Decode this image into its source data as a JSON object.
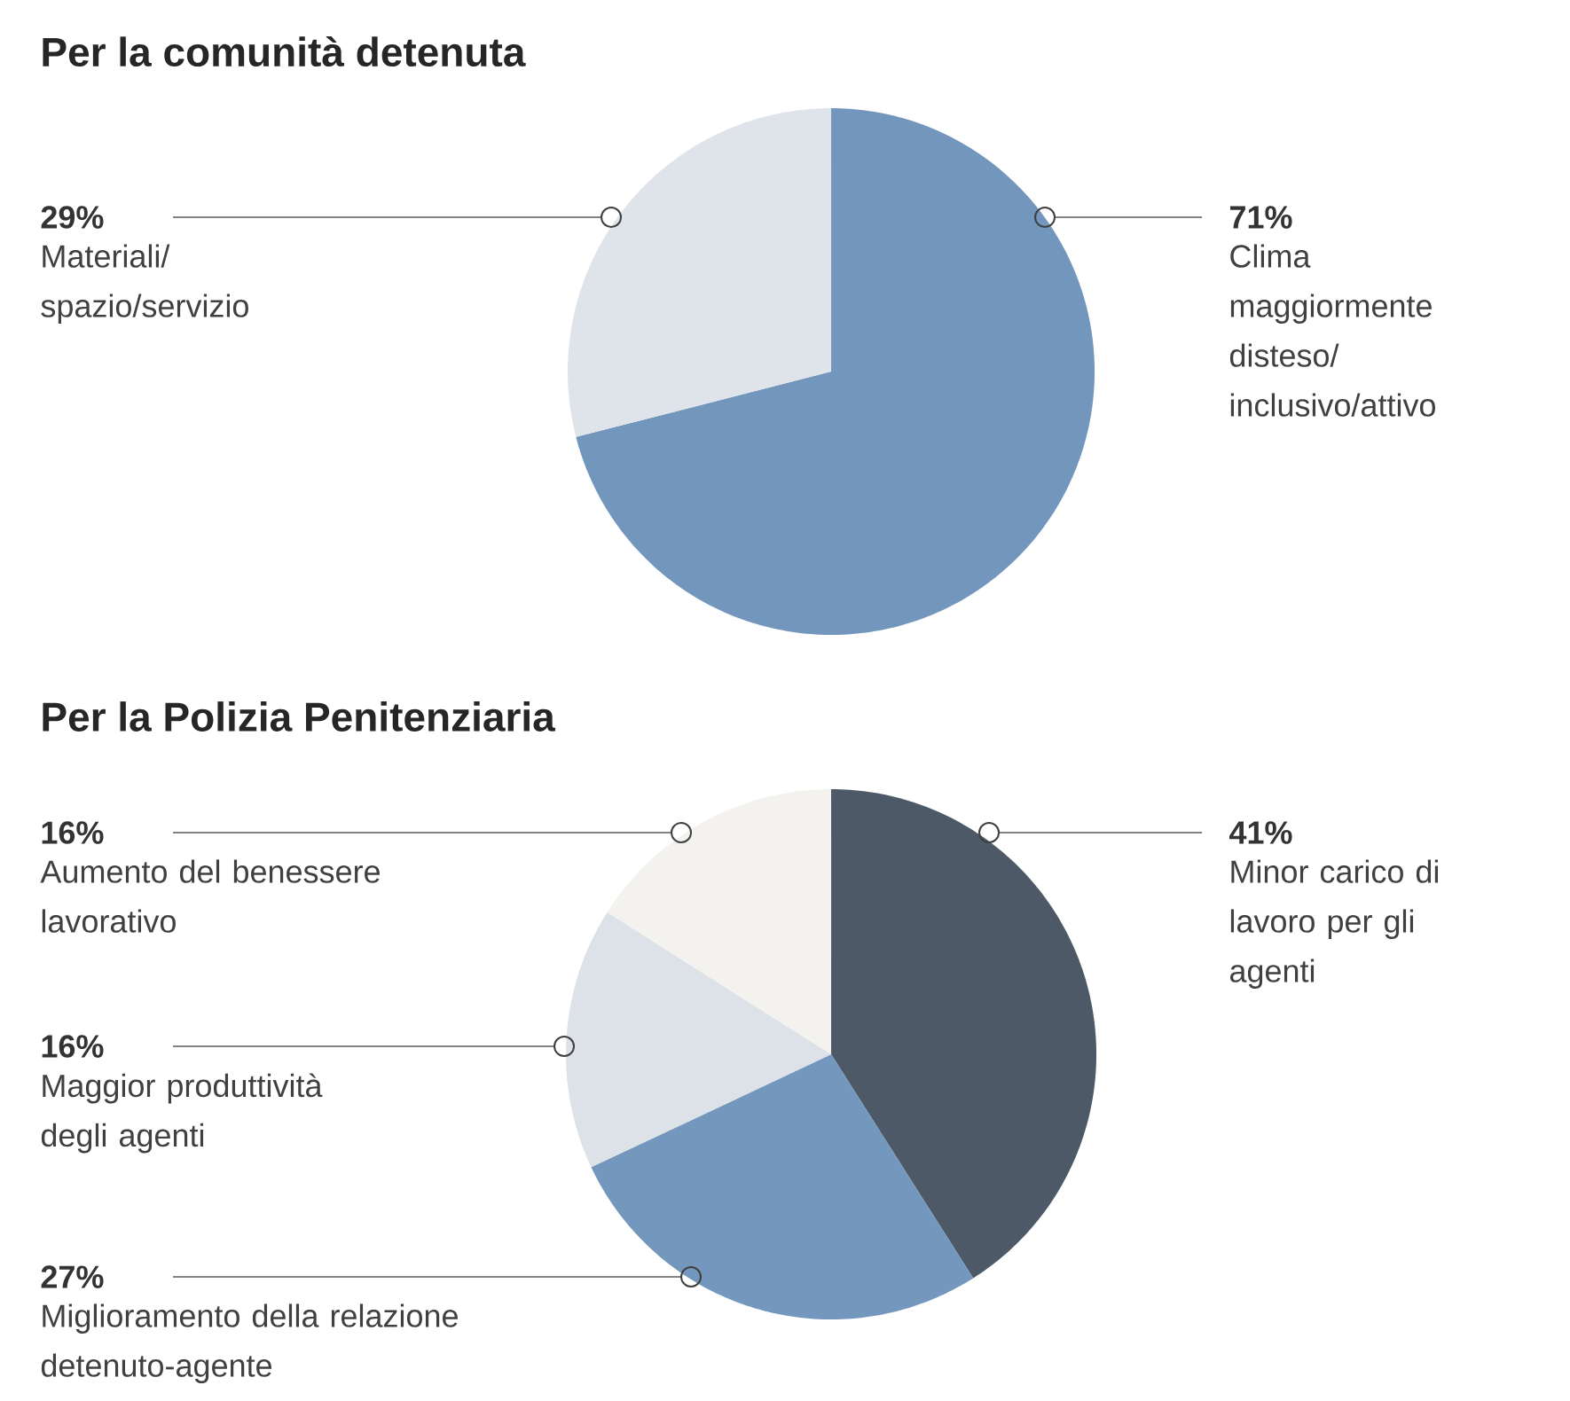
{
  "chart_data": [
    {
      "type": "pie",
      "title": "Per la comunità detenuta",
      "categories": [
        "Clima maggiormente disteso/ inclusivo/attivo",
        "Materiali/ spazio/servizio"
      ],
      "values": [
        71,
        29
      ],
      "value_labels": [
        "71%",
        "29%"
      ],
      "colors": [
        "#7396bd",
        "#dfe4ea"
      ]
    },
    {
      "type": "pie",
      "title": "Per la Polizia Penitenziaria",
      "categories": [
        "Minor carico di lavoro per gli agenti",
        "Miglioramento della relazione detenuto-agente",
        "Maggior produttività degli agenti",
        "Aumento del benessere lavorativo"
      ],
      "values": [
        41,
        27,
        16,
        16
      ],
      "value_labels": [
        "41%",
        "27%",
        "16%",
        "16%"
      ],
      "colors": [
        "#4d5966",
        "#7497bd",
        "#dde2e8",
        "#f4f2ee"
      ]
    }
  ]
}
